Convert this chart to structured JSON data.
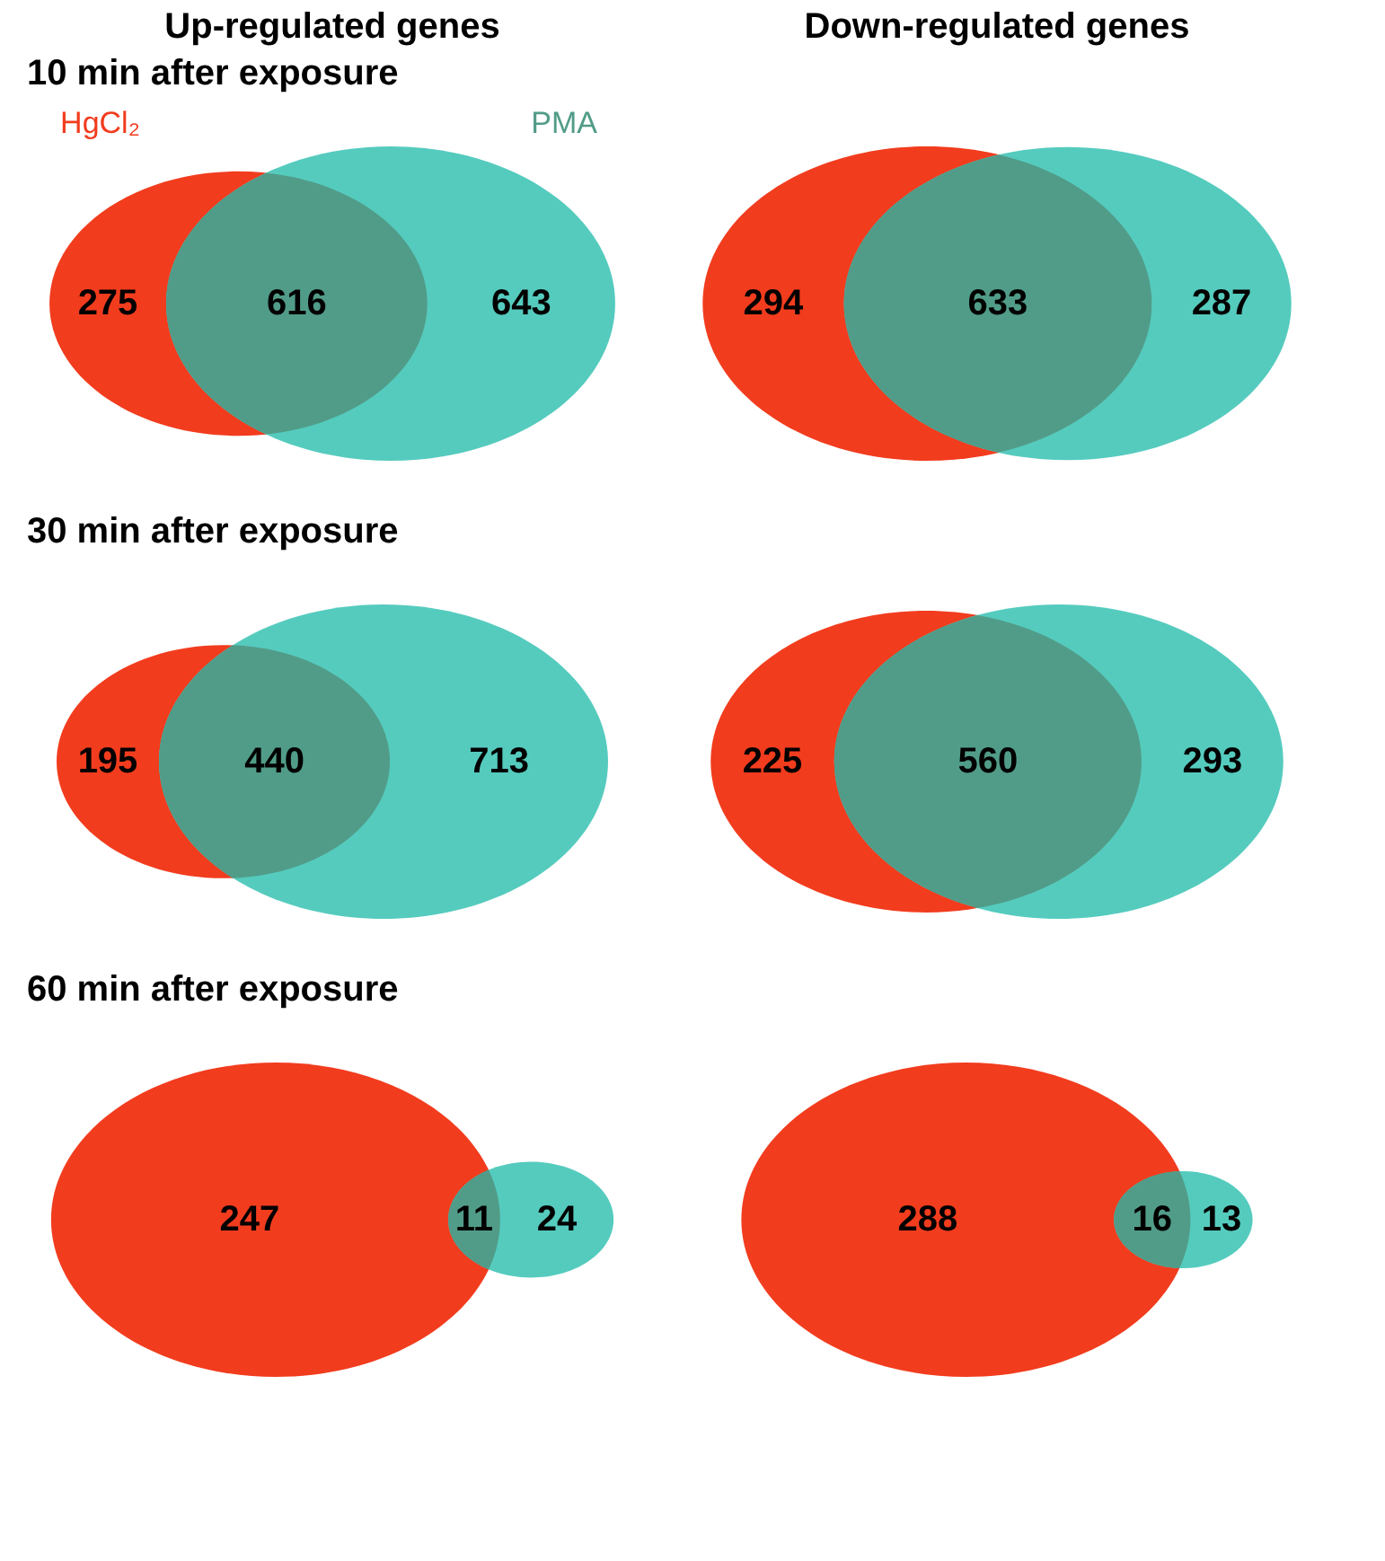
{
  "chart_data": [
    {
      "type": "other",
      "title": "Up-regulated genes",
      "subtitle": "10 min after exposure",
      "categories": [
        "HgCl₂",
        null,
        "PMA"
      ],
      "values": [
        275,
        616,
        643
      ],
      "colors": [
        "#f23c1e",
        "#519c88",
        "#55cbbe"
      ],
      "data_labels": true
    },
    {
      "type": "other",
      "subtitle": "30 min after exposure",
      "categories": [
        null,
        null,
        null
      ],
      "values": [
        195,
        440,
        713
      ],
      "colors": [
        "#f23c1e",
        "#519c88",
        "#55cbbe"
      ],
      "data_labels": true
    },
    {
      "type": "other",
      "subtitle": "60 min after exposure",
      "categories": [
        null,
        null,
        null
      ],
      "values": [
        247,
        11,
        24
      ],
      "colors": [
        "#f23c1e",
        "#519c88",
        "#55cbbe"
      ],
      "data_labels": true
    },
    {
      "type": "other",
      "title": "Down-regulated genes",
      "categories": [
        null,
        null,
        null
      ],
      "values": [
        294,
        633,
        287
      ],
      "colors": [
        "#f23c1e",
        "#519c88",
        "#55cbbe"
      ],
      "data_labels": true
    },
    {
      "type": "other",
      "categories": [
        null,
        null,
        null
      ],
      "values": [
        225,
        560,
        293
      ],
      "colors": [
        "#f23c1e",
        "#519c88",
        "#55cbbe"
      ],
      "data_labels": true
    },
    {
      "type": "other",
      "categories": [
        null,
        null,
        null
      ],
      "values": [
        288,
        16,
        13
      ],
      "colors": [
        "#f23c1e",
        "#519c88",
        "#55cbbe"
      ],
      "data_labels": true
    }
  ]
}
